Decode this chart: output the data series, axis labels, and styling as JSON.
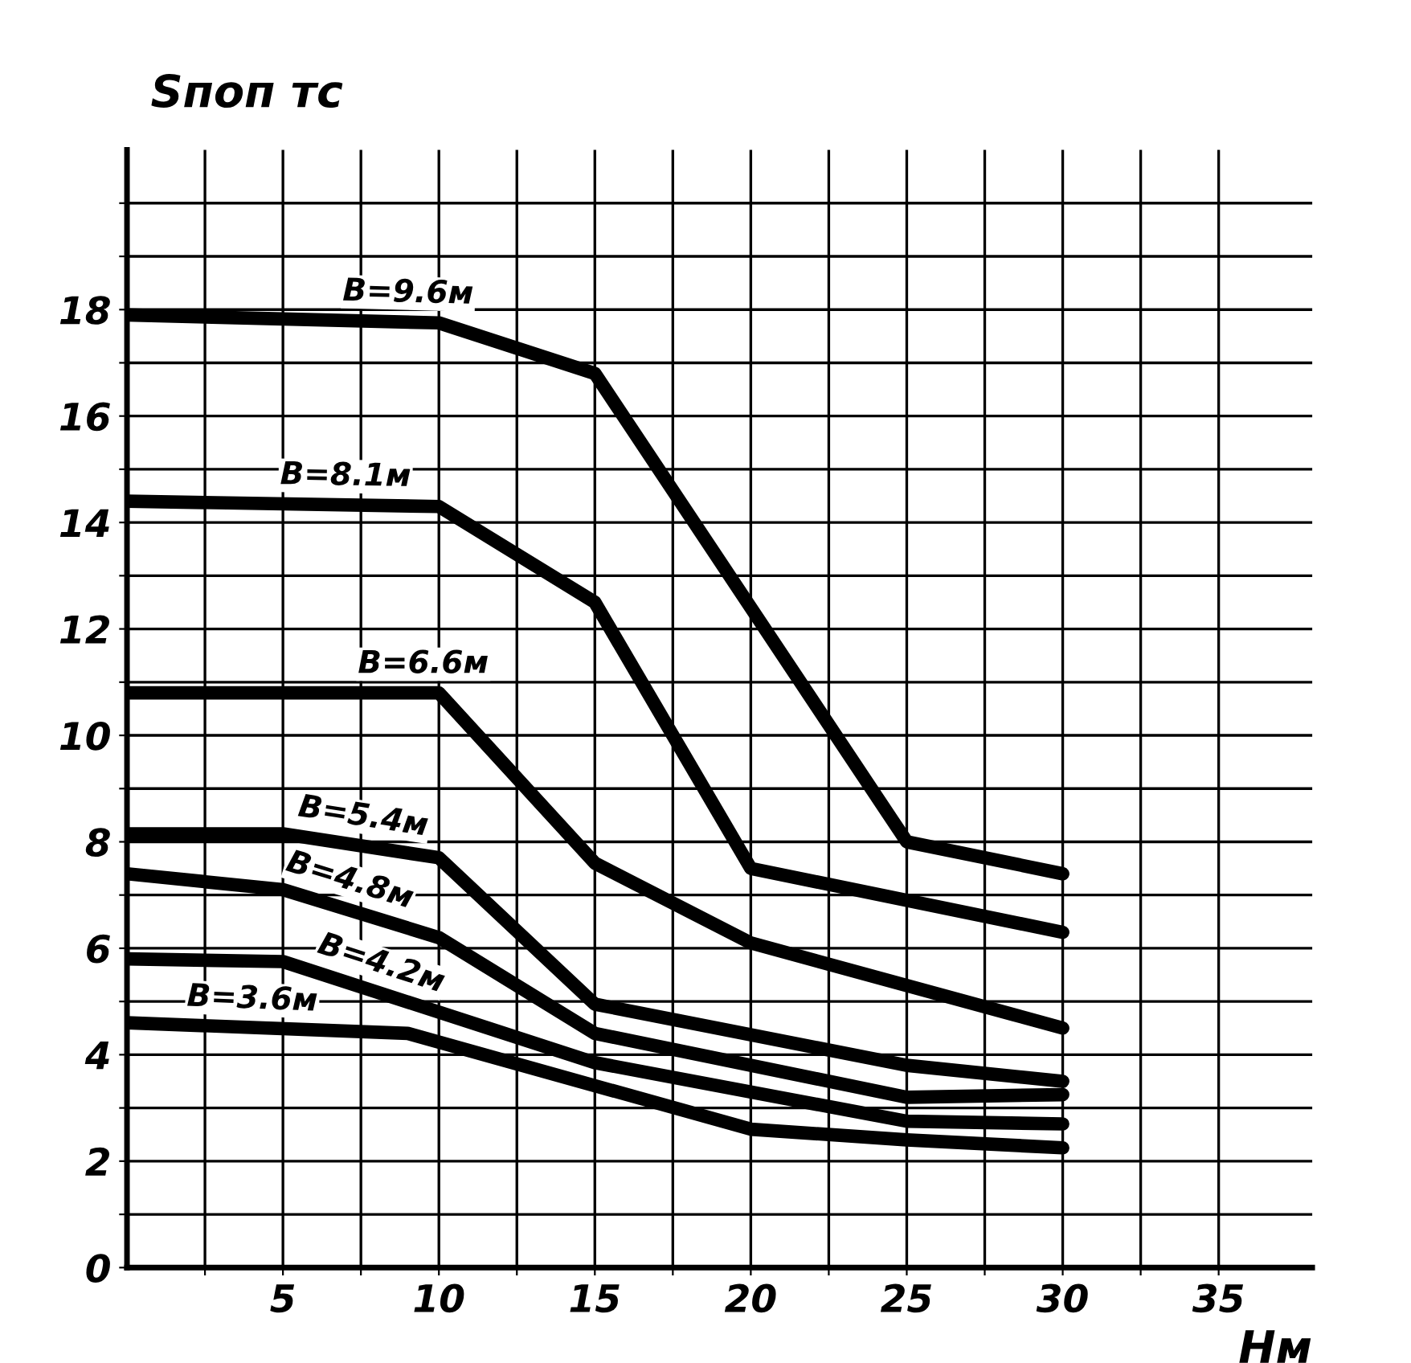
{
  "chart_data": {
    "type": "line",
    "xlabel": "Hм",
    "ylabel": "Sпоп тс",
    "xlim": [
      0,
      38
    ],
    "ylim": [
      0,
      21
    ],
    "xticks": [
      {
        "value": 2.5,
        "label": null
      },
      5,
      {
        "value": 7.5,
        "label": null
      },
      10,
      {
        "value": 12.5,
        "label": null
      },
      15,
      {
        "value": 17.5,
        "label": null
      },
      20,
      {
        "value": 22.5,
        "label": null
      },
      25,
      {
        "value": 27.5,
        "label": null
      },
      30,
      {
        "value": 32.5,
        "label": null
      },
      35
    ],
    "yticks": [
      0,
      {
        "value": 1,
        "label": null
      },
      2,
      {
        "value": 3,
        "label": null
      },
      4,
      {
        "value": 5,
        "label": null
      },
      6,
      {
        "value": 7,
        "label": null
      },
      8,
      {
        "value": 9,
        "label": null
      },
      10,
      {
        "value": 11,
        "label": null
      },
      12,
      {
        "value": 13,
        "label": null
      },
      14,
      {
        "value": 15,
        "label": null
      },
      16,
      {
        "value": 17,
        "label": null
      },
      18,
      {
        "value": 19,
        "label": null
      },
      {
        "value": 20,
        "label": null
      }
    ],
    "grid": true,
    "marker": "none",
    "line_style": "solid",
    "series": [
      {
        "color": "#000000",
        "x": [
          0,
          10,
          15,
          25,
          30
        ],
        "values": [
          17.9,
          17.75,
          16.8,
          8.0,
          7.4
        ]
      },
      {
        "color": "#000000",
        "x": [
          0,
          10,
          15,
          20,
          30
        ],
        "values": [
          14.4,
          14.3,
          12.5,
          7.5,
          6.3
        ]
      },
      {
        "color": "#000000",
        "x": [
          0,
          10,
          15,
          20,
          30
        ],
        "values": [
          10.8,
          10.8,
          7.6,
          6.1,
          4.5
        ]
      },
      {
        "color": "#000000",
        "x": [
          0,
          5,
          10,
          15,
          25,
          30
        ],
        "values": [
          8.15,
          8.15,
          7.7,
          4.95,
          3.8,
          3.5
        ]
      },
      {
        "color": "#000000",
        "x": [
          0,
          5,
          10,
          15,
          25,
          30
        ],
        "values": [
          7.4,
          7.1,
          6.2,
          4.4,
          3.2,
          3.25
        ]
      },
      {
        "color": "#000000",
        "x": [
          0,
          5,
          15,
          25,
          30
        ],
        "values": [
          5.8,
          5.75,
          3.85,
          2.75,
          2.7
        ]
      },
      {
        "color": "#000000",
        "x": [
          0,
          9,
          20,
          25,
          30
        ],
        "values": [
          4.6,
          4.4,
          2.6,
          2.4,
          2.25
        ]
      }
    ],
    "annotations": [
      {
        "text": "B=9.6м",
        "x": 9,
        "y": 17.77
      },
      {
        "text": "B=8.1м",
        "x": 7,
        "y": 14.33
      },
      {
        "text": "B=6.6м",
        "x": 9.5,
        "y": 10.8
      },
      {
        "text": "B=5.4м",
        "x": 7.5,
        "y": 7.93
      },
      {
        "text": "B=4.8м",
        "x": 7,
        "y": 6.74
      },
      {
        "text": "B=4.2м",
        "x": 8,
        "y": 5.18
      },
      {
        "text": "B=3.6м",
        "x": 4,
        "y": 4.5
      }
    ]
  }
}
